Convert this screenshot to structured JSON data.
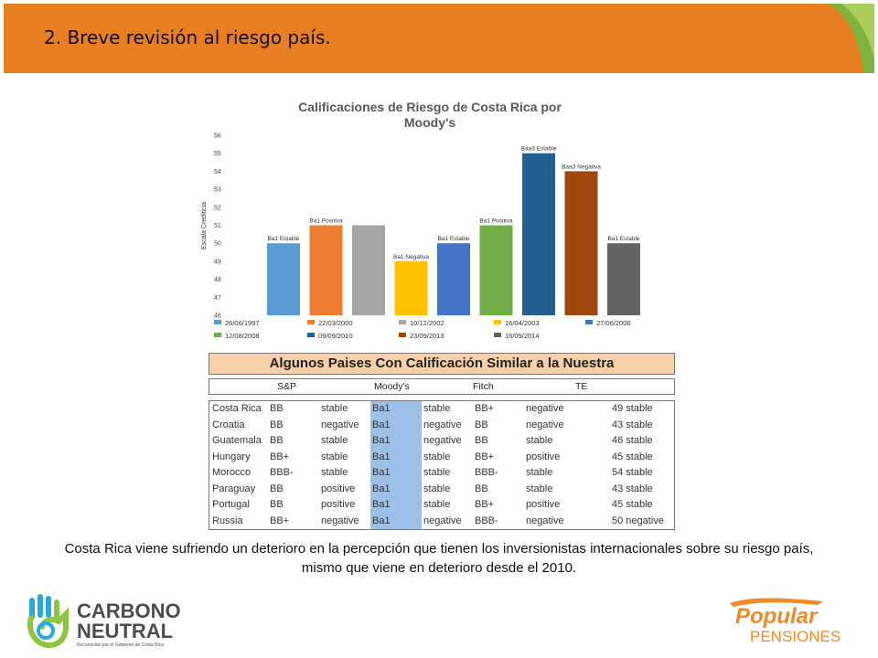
{
  "header": {
    "title": "2. Breve revisión al riesgo país."
  },
  "chart_data": {
    "type": "bar",
    "title": "Calificaciones de Riesgo de Costa Rica por Moody's",
    "ylabel": "Escala Crediticia",
    "ylim": [
      46,
      56
    ],
    "yticks": [
      46,
      47,
      48,
      49,
      50,
      51,
      52,
      53,
      54,
      55,
      56
    ],
    "grid": false,
    "legend_position": "bottom",
    "series": [
      {
        "name": "26/06/1997",
        "value": 50,
        "label": "Ba1 Estable",
        "color": "#5b9bd5"
      },
      {
        "name": "22/03/2000",
        "value": 51,
        "label": "Ba1 Positiva",
        "color": "#ed7d31"
      },
      {
        "name": "10/12/2002",
        "value": 51,
        "label": "",
        "color": "#a5a5a5"
      },
      {
        "name": "16/04/2003",
        "value": 49,
        "label": "Ba1 Negativa",
        "color": "#ffc000"
      },
      {
        "name": "27/06/2006",
        "value": 50,
        "label": "Ba1 Estable",
        "color": "#4472c4"
      },
      {
        "name": "12/08/2008",
        "value": 51,
        "label": "Ba1 Positiva",
        "color": "#70ad47"
      },
      {
        "name": "09/09/2010",
        "value": 55,
        "label": "Baa3 Estable",
        "color": "#255e91"
      },
      {
        "name": "23/09/2013",
        "value": 54,
        "label": "Baa3 Negativa",
        "color": "#9e480e"
      },
      {
        "name": "16/09/2014",
        "value": 50,
        "label": "Ba1 Estable",
        "color": "#636363"
      }
    ]
  },
  "table": {
    "title": "Algunos Paises Con Calificación Similar a la Nuestra",
    "agencies": [
      "S&P",
      "Moody's",
      "Fitch",
      "TE"
    ],
    "rows": [
      [
        "Costa Rica",
        "BB",
        "stable",
        "Ba1",
        "stable",
        "BB+",
        "negative",
        "49 stable"
      ],
      [
        "Croatia",
        "BB",
        "negative",
        "Ba1",
        "negative",
        "BB",
        "negative",
        "43 stable"
      ],
      [
        "Guatemala",
        "BB",
        "stable",
        "Ba1",
        "negative",
        "BB",
        "stable",
        "46 stable"
      ],
      [
        "Hungary",
        "BB+",
        "stable",
        "Ba1",
        "stable",
        "BB+",
        "positive",
        "45 stable"
      ],
      [
        "Morocco",
        "BBB-",
        "stable",
        "Ba1",
        "stable",
        "BBB-",
        "stable",
        "54 stable"
      ],
      [
        "Paraguay",
        "BB",
        "positive",
        "Ba1",
        "stable",
        "BB",
        "stable",
        "43 stable"
      ],
      [
        "Portugal",
        "BB",
        "positive",
        "Ba1",
        "stable",
        "BB+",
        "positive",
        "45 stable"
      ],
      [
        "Russia",
        "BB+",
        "negative",
        "Ba1",
        "negative",
        "BBB-",
        "negative",
        "50 negative"
      ]
    ]
  },
  "summary": "Costa Rica viene sufriendo un deterioro en la percepción que tienen los inversionistas internacionales sobre su riesgo país, mismo que viene en deterioro desde el 2010.",
  "logos": {
    "carbono": {
      "line1": "CARBONO",
      "line2": "NEUTRAL",
      "tagline": "Reconocido por el Gobierno de Costa Rica"
    },
    "popular": {
      "line1": "Popular",
      "line2": "PENSIONES"
    }
  },
  "colors": {
    "header": "#e87e22",
    "banner": "#f7cfa8",
    "moodys_band": "#9cc0e6",
    "carbono_text": "#4d4d4f",
    "popular_orange": "#f08a24"
  }
}
